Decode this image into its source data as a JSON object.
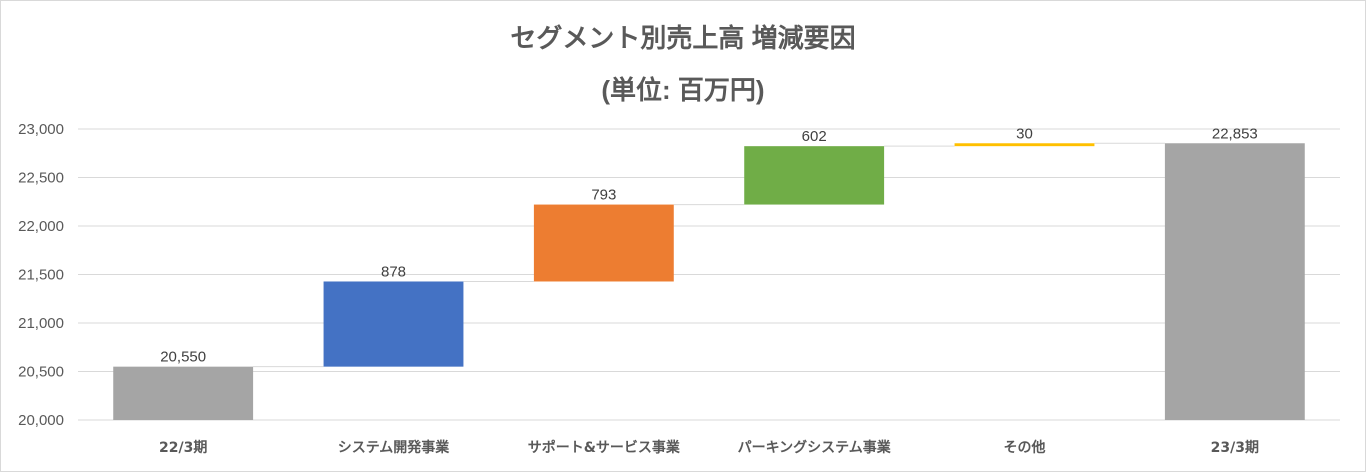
{
  "chart_data": {
    "type": "waterfall",
    "title": "セグメント別売上高 増減要因",
    "subtitle": "(単位: 百万円)",
    "categories": [
      "22/3期",
      "システム開発事業",
      "サポート&サービス事業",
      "パーキングシステム事業",
      "その他",
      "23/3期"
    ],
    "values": [
      20550,
      878,
      793,
      602,
      30,
      22853
    ],
    "data_labels": [
      "20,550",
      "878",
      "793",
      "602",
      "30",
      "22,853"
    ],
    "kinds": [
      "total",
      "increase",
      "increase",
      "increase",
      "increase",
      "total"
    ],
    "colors": [
      "#a5a5a5",
      "#4472c4",
      "#ed7d31",
      "#70ad47",
      "#ffc000",
      "#a5a5a5"
    ],
    "ylim": [
      20000,
      23000
    ],
    "yticks": [
      20000,
      20500,
      21000,
      21500,
      22000,
      22500,
      23000
    ],
    "ytick_labels": [
      "20,000",
      "20,500",
      "21,000",
      "21,500",
      "22,000",
      "22,500",
      "23,000"
    ],
    "grid": true,
    "connector_lines": true
  }
}
